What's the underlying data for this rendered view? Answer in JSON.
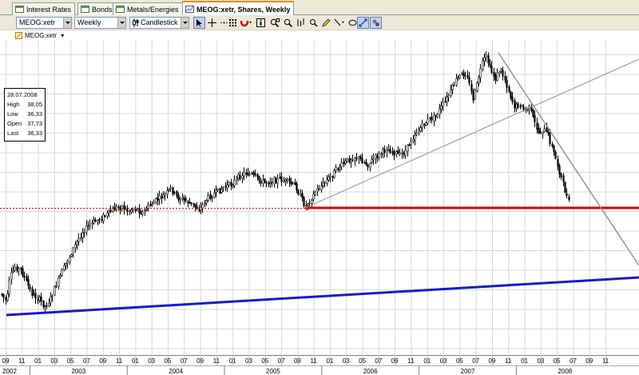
{
  "tabs": [
    {
      "label": "Interest Rates",
      "icon": "grid-icon",
      "active": false
    },
    {
      "label": "Bonds",
      "icon": "grid-icon",
      "active": false
    },
    {
      "label": "Metals/Energies",
      "icon": "grid-icon",
      "active": false
    },
    {
      "label": "MEOG:xetr, Shares, Weekly",
      "icon": "chart-icon",
      "active": true
    }
  ],
  "toolbar": {
    "symbol_value": "MEOG:xetr",
    "period_value": "Weekly",
    "chart_type_value": "Candlestick",
    "buttons": [
      "cursor-icon",
      "crosshair-icon",
      "dots-icon",
      "grid-icon",
      "magnet-icon",
      "info-icon",
      "zoom-rect-icon",
      "zoom-icon",
      "bars-icon",
      "search-icon",
      "pencil-icon",
      "line-tool-icon",
      "oval-icon",
      "fit-icon",
      "tools-icon"
    ]
  },
  "series_label": "MEOG:xetr",
  "infobox": {
    "date": "28.07.2008",
    "high_label": "High",
    "high": "38,05",
    "low_label": "Low",
    "low": "36,33",
    "open_label": "Open",
    "open": "37,73",
    "last_label": "Last",
    "last": "36,33"
  },
  "colors": {
    "support_line": "#e00000",
    "trend_line": "#1a1ad0",
    "guide_line": "#909090",
    "candle": "#000000"
  },
  "chart_data": {
    "type": "candlestick",
    "period": "weekly",
    "x_months": [
      "09",
      "11",
      "01",
      "03",
      "05",
      "07",
      "09",
      "11",
      "01",
      "03",
      "05",
      "07",
      "09",
      "11",
      "01",
      "03",
      "05",
      "07",
      "09",
      "11",
      "01",
      "03",
      "05",
      "07",
      "09",
      "11",
      "01",
      "03",
      "05",
      "07",
      "09",
      "11",
      "01",
      "03",
      "05",
      "07",
      "09",
      "11"
    ],
    "x_years": [
      "2002",
      "2003",
      "2004",
      "2005",
      "2006",
      "2007",
      "2008"
    ],
    "grid": true,
    "legend": "none",
    "last_candle": {
      "date": "28.07.2008",
      "open": 37.73,
      "high": 38.05,
      "low": 36.33,
      "close": 36.33
    }
  }
}
